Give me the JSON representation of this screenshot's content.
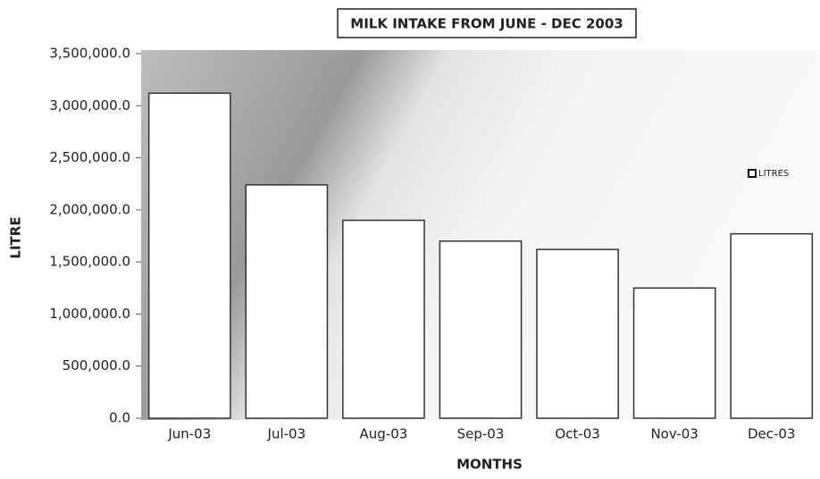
{
  "chart_data": {
    "type": "bar",
    "title": "MILK INTAKE FROM JUNE - DEC 2003",
    "x_label": "MONTHS",
    "y_label": "LITRE",
    "categories": [
      "Jun-03",
      "Jul-03",
      "Aug-03",
      "Sep-03",
      "Oct-03",
      "Nov-03",
      "Dec-03"
    ],
    "series": [
      {
        "name": "LITRES",
        "color": "#ffffff",
        "values": [
          3120000,
          2240000,
          1900000,
          1700000,
          1620000,
          1250000,
          1770000
        ]
      }
    ],
    "ylim": [
      0,
      3500000
    ],
    "yticks": [
      {
        "value": 0,
        "label": "0.0"
      },
      {
        "value": 500000,
        "label": "500,000.0"
      },
      {
        "value": 1000000,
        "label": "1,000,000.0"
      },
      {
        "value": 1500000,
        "label": "1,500,000.0"
      },
      {
        "value": 2000000,
        "label": "2,000,000.0"
      },
      {
        "value": 2500000,
        "label": "2,500,000.0"
      },
      {
        "value": 3000000,
        "label": "3,000,000.0"
      },
      {
        "value": 3500000,
        "label": "3,500,000.0"
      }
    ],
    "legend": "right"
  }
}
